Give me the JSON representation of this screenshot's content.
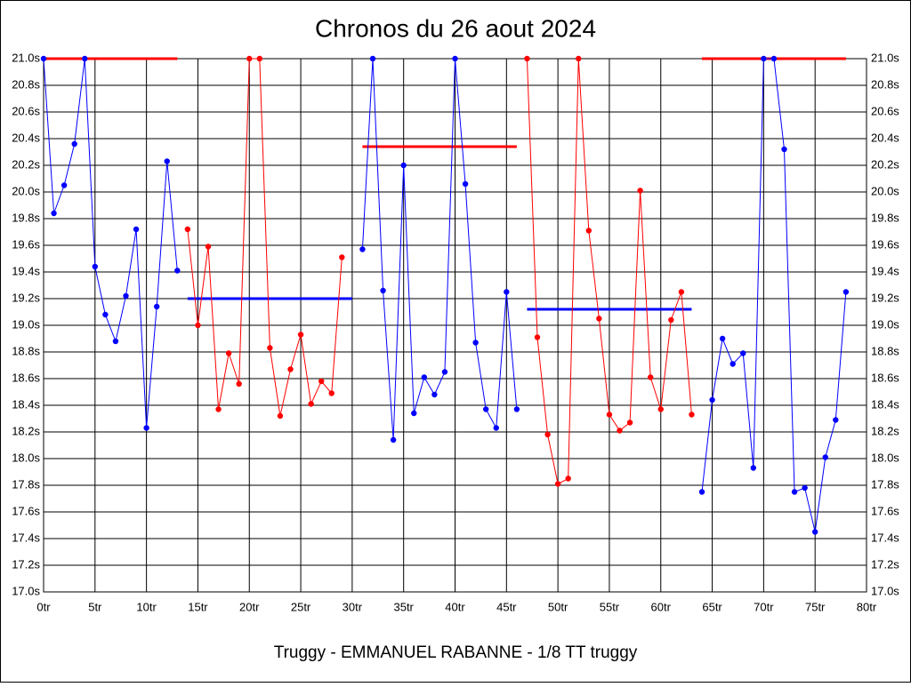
{
  "chart_data": {
    "type": "line",
    "title": "Chronos du 26 aout 2024",
    "xlabel": "Truggy - EMMANUEL RABANNE - 1/8 TT truggy",
    "xlim": [
      0,
      80
    ],
    "ylim": [
      17.0,
      21.0
    ],
    "grid": true,
    "xticks": [
      {
        "value": 0,
        "label": "0tr"
      },
      {
        "value": 5,
        "label": "5tr"
      },
      {
        "value": 10,
        "label": "10tr"
      },
      {
        "value": 15,
        "label": "15tr"
      },
      {
        "value": 20,
        "label": "20tr"
      },
      {
        "value": 25,
        "label": "25tr"
      },
      {
        "value": 30,
        "label": "30tr"
      },
      {
        "value": 35,
        "label": "35tr"
      },
      {
        "value": 40,
        "label": "40tr"
      },
      {
        "value": 45,
        "label": "45tr"
      },
      {
        "value": 50,
        "label": "50tr"
      },
      {
        "value": 55,
        "label": "55tr"
      },
      {
        "value": 60,
        "label": "60tr"
      },
      {
        "value": 65,
        "label": "65tr"
      },
      {
        "value": 70,
        "label": "70tr"
      },
      {
        "value": 75,
        "label": "75tr"
      },
      {
        "value": 80,
        "label": "80tr"
      }
    ],
    "yticks": [
      {
        "value": 17.0,
        "label": "17.0s"
      },
      {
        "value": 17.2,
        "label": "17.2s"
      },
      {
        "value": 17.4,
        "label": "17.4s"
      },
      {
        "value": 17.6,
        "label": "17.6s"
      },
      {
        "value": 17.8,
        "label": "17.8s"
      },
      {
        "value": 18.0,
        "label": "18.0s"
      },
      {
        "value": 18.2,
        "label": "18.2s"
      },
      {
        "value": 18.4,
        "label": "18.4s"
      },
      {
        "value": 18.6,
        "label": "18.6s"
      },
      {
        "value": 18.8,
        "label": "18.8s"
      },
      {
        "value": 19.0,
        "label": "19.0s"
      },
      {
        "value": 19.2,
        "label": "19.2s"
      },
      {
        "value": 19.4,
        "label": "19.4s"
      },
      {
        "value": 19.6,
        "label": "19.6s"
      },
      {
        "value": 19.8,
        "label": "19.8s"
      },
      {
        "value": 20.0,
        "label": "20.0s"
      },
      {
        "value": 20.2,
        "label": "20.2s"
      },
      {
        "value": 20.4,
        "label": "20.4s"
      },
      {
        "value": 20.6,
        "label": "20.6s"
      },
      {
        "value": 20.8,
        "label": "20.8s"
      },
      {
        "value": 21.0,
        "label": "21.0s"
      }
    ],
    "series": [
      {
        "color": "#0000ff",
        "x": [
          0,
          1,
          2,
          3,
          4,
          5,
          6,
          7,
          8,
          9,
          10,
          11,
          12,
          13
        ],
        "values": [
          21.0,
          19.84,
          20.05,
          20.36,
          21.0,
          19.44,
          19.08,
          18.88,
          19.22,
          19.72,
          18.23,
          19.14,
          20.23,
          19.41
        ]
      },
      {
        "color": "#ff0000",
        "x": [
          14,
          15,
          16,
          17,
          18,
          19,
          20,
          21,
          22,
          23,
          24,
          25,
          26,
          27,
          28,
          29
        ],
        "values": [
          19.72,
          19.0,
          19.59,
          18.37,
          18.79,
          18.56,
          21.0,
          21.0,
          18.83,
          18.32,
          18.67,
          18.93,
          18.41,
          18.58,
          18.49,
          19.51
        ]
      },
      {
        "color": "#0000ff",
        "x": [
          31,
          32,
          33,
          34,
          35,
          36,
          37,
          38,
          39,
          40,
          41,
          42,
          43,
          44,
          45,
          46
        ],
        "values": [
          19.57,
          21.0,
          19.26,
          18.14,
          20.2,
          18.34,
          18.61,
          18.48,
          18.65,
          21.0,
          20.06,
          18.87,
          18.37,
          18.23,
          19.25,
          18.37
        ]
      },
      {
        "color": "#ff0000",
        "x": [
          47,
          48,
          49,
          50,
          51,
          52,
          53,
          54,
          55,
          56,
          57,
          58,
          59,
          60,
          61,
          62,
          63
        ],
        "values": [
          21.0,
          18.91,
          18.18,
          17.81,
          17.85,
          21.0,
          19.71,
          19.05,
          18.33,
          18.21,
          18.27,
          20.01,
          18.61,
          18.37,
          19.04,
          19.25,
          18.33
        ]
      },
      {
        "color": "#0000ff",
        "x": [
          64,
          65,
          66,
          67,
          68,
          69,
          70,
          71,
          72,
          73,
          74,
          75,
          76,
          77,
          78
        ],
        "values": [
          17.75,
          18.44,
          18.9,
          18.71,
          18.79,
          17.93,
          21.0,
          21.0,
          20.32,
          17.75,
          17.78,
          17.45,
          18.01,
          18.29,
          19.25
        ]
      }
    ],
    "averages": [
      {
        "color": "#ff0000",
        "x": [
          0,
          13
        ],
        "value": 21.0
      },
      {
        "color": "#0000ff",
        "x": [
          14,
          30
        ],
        "value": 19.2
      },
      {
        "color": "#ff0000",
        "x": [
          31,
          46
        ],
        "value": 20.34
      },
      {
        "color": "#0000ff",
        "x": [
          47,
          63
        ],
        "value": 19.12
      },
      {
        "color": "#ff0000",
        "x": [
          64,
          78
        ],
        "value": 21.0
      }
    ]
  }
}
